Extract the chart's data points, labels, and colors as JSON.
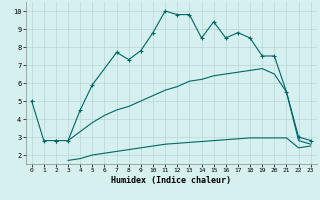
{
  "xlabel": "Humidex (Indice chaleur)",
  "background_color": "#d6efef",
  "grid_color": "#b8d8d8",
  "line_color": "#006666",
  "xlim": [
    -0.5,
    23.5
  ],
  "ylim": [
    1.5,
    10.5
  ],
  "xticks": [
    0,
    1,
    2,
    3,
    4,
    5,
    6,
    7,
    8,
    9,
    10,
    11,
    12,
    13,
    14,
    15,
    16,
    17,
    18,
    19,
    20,
    21,
    22,
    23
  ],
  "yticks": [
    2,
    3,
    4,
    5,
    6,
    7,
    8,
    9,
    10
  ],
  "curve1_x": [
    0,
    1,
    2
  ],
  "curve1_y": [
    5.0,
    2.8,
    2.8
  ],
  "curve2_x": [
    2,
    3,
    4,
    5,
    7,
    8,
    9,
    10,
    11,
    12,
    13,
    14,
    15,
    16,
    17,
    18,
    19,
    20,
    21,
    22,
    23
  ],
  "curve2_y": [
    2.8,
    2.8,
    4.5,
    5.9,
    7.7,
    7.3,
    7.8,
    8.8,
    10.0,
    9.8,
    9.8,
    8.5,
    9.4,
    8.5,
    8.8,
    8.5,
    7.5,
    7.5,
    5.5,
    3.0,
    2.8
  ],
  "curve3_x": [
    3,
    4,
    5,
    6,
    7,
    8,
    9,
    10,
    11,
    12,
    13,
    14,
    15,
    16,
    17,
    18,
    19,
    20,
    21,
    22,
    23
  ],
  "curve3_y": [
    2.8,
    3.3,
    3.8,
    4.2,
    4.5,
    4.7,
    5.0,
    5.3,
    5.6,
    5.8,
    6.1,
    6.2,
    6.4,
    6.5,
    6.6,
    6.7,
    6.8,
    6.5,
    5.5,
    2.8,
    2.6
  ],
  "curve4_x": [
    3,
    4,
    5,
    6,
    7,
    8,
    9,
    10,
    11,
    12,
    13,
    14,
    15,
    16,
    17,
    18,
    19,
    20,
    21,
    22,
    23
  ],
  "curve4_y": [
    1.7,
    1.8,
    2.0,
    2.1,
    2.2,
    2.3,
    2.4,
    2.5,
    2.6,
    2.65,
    2.7,
    2.75,
    2.8,
    2.85,
    2.9,
    2.95,
    2.95,
    2.95,
    2.95,
    2.4,
    2.5
  ]
}
